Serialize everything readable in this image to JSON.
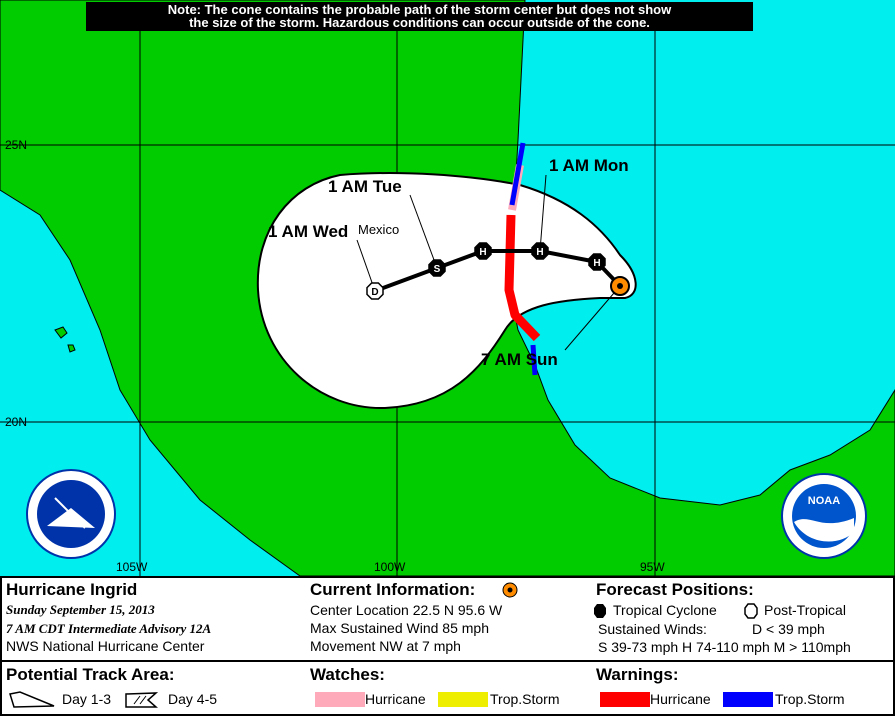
{
  "note": [
    "Note: The cone contains the probable path of the storm center but does not show",
    "the size of the storm. Hazardous conditions can occur outside of the cone."
  ],
  "map": {
    "colors": {
      "land": "#00cc00",
      "water": "#00eeee",
      "cone": "#ffffff",
      "hurricane_warning": "#ff0000",
      "ts_warning": "#0000ff",
      "hurricane_watch": "#ffaabb",
      "ts_watch": "#eeee00",
      "current": "#ff8c00"
    },
    "lat_labels": [
      "25N",
      "20N"
    ],
    "lon_labels": [
      "105W",
      "100W",
      "95W"
    ],
    "place": "Mexico",
    "time_labels": {
      "mon": "1 AM Mon",
      "tue": "1 AM Tue",
      "wed": "1 AM Wed",
      "sun": "7 AM Sun"
    },
    "points": [
      {
        "type": "current",
        "letter": ""
      },
      {
        "type": "H",
        "letter": "H"
      },
      {
        "type": "H",
        "letter": "H"
      },
      {
        "type": "H",
        "letter": "H"
      },
      {
        "type": "S",
        "letter": "S"
      },
      {
        "type": "D",
        "letter": "D"
      }
    ],
    "logos": [
      "National Weather Service",
      "NOAA"
    ]
  },
  "legend": {
    "storm_name": "Hurricane Ingrid",
    "date": "Sunday   September 15, 2013",
    "advisory": "7 AM CDT Intermediate Advisory 12A",
    "center": "NWS National Hurricane Center",
    "current_title": "Current Information:",
    "location": "Center Location 22.5 N  95.6 W",
    "wind": "Max Sustained Wind  85 mph",
    "movement": "Movement NW at  7 mph",
    "forecast_title": "Forecast Positions:",
    "tropical": "Tropical Cyclone",
    "post_tropical": "Post-Tropical",
    "sustained": "Sustained Winds:",
    "d_def": "D  < 39 mph",
    "shm_def": "S  39-73 mph  H  74-110 mph  M  > 110mph",
    "track_title": "Potential Track Area:",
    "day13": "Day 1-3",
    "day45": "Day 4-5",
    "watches_title": "Watches:",
    "warnings_title": "Warnings:",
    "hurricane": "Hurricane",
    "tropstorm": "Trop.Storm"
  }
}
